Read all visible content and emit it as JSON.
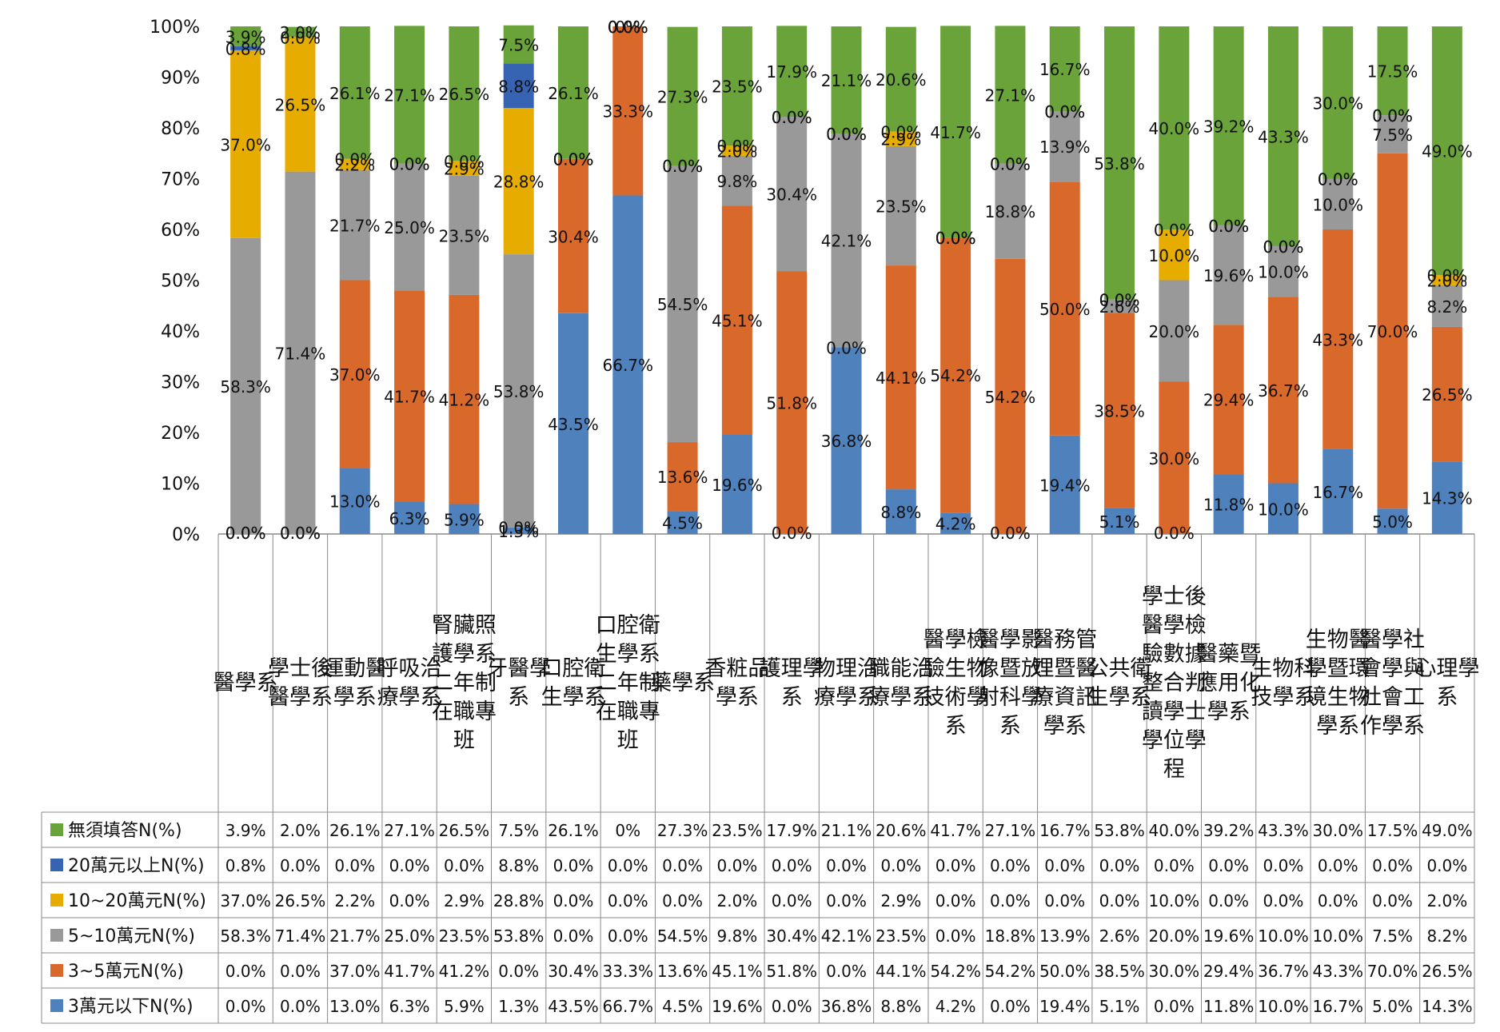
{
  "chart_data": {
    "type": "bar",
    "stacked": true,
    "percent_scale": true,
    "ylim": [
      0,
      100
    ],
    "y_ticks": [
      "0%",
      "10%",
      "20%",
      "30%",
      "40%",
      "50%",
      "60%",
      "70%",
      "80%",
      "90%",
      "100%"
    ],
    "grid": false,
    "legend": "data-table-left",
    "categories": [
      "醫學系",
      "學士後醫學系",
      "運動醫學系",
      "呼吸治療學系",
      "腎臟照護學系二年制在職專班",
      "牙醫學系",
      "口腔衛生學系",
      "口腔衛生學系二年制在職專班",
      "藥學系",
      "香粧品學系",
      "護理學系",
      "物理治療學系",
      "職能治療學系",
      "醫學檢驗生物技術學系",
      "醫學影像暨放射科學系",
      "醫務管理暨醫療資訊學系",
      "公共衛生學系",
      "學士後醫學檢驗數據整合判讀學士學位學程",
      "醫藥暨應用化學系",
      "生物科技學系",
      "生物醫學暨環境生物學系",
      "醫學社會學與社會工作學系",
      "心理學系"
    ],
    "series": [
      {
        "name": "3萬元以下N(%)",
        "color": "#4f81bd",
        "values": [
          0.0,
          0.0,
          13.0,
          6.3,
          5.9,
          1.3,
          43.5,
          66.7,
          4.5,
          19.6,
          0.0,
          36.8,
          8.8,
          4.2,
          0.0,
          19.4,
          5.1,
          0.0,
          11.8,
          10.0,
          16.7,
          5.0,
          14.3
        ],
        "labels": [
          "0.0%",
          "0.0%",
          "13.0%",
          "6.3%",
          "5.9%",
          "1.3%",
          "43.5%",
          "66.7%",
          "4.5%",
          "19.6%",
          "0.0%",
          "36.8%",
          "8.8%",
          "4.2%",
          "0.0%",
          "19.4%",
          "5.1%",
          "0.0%",
          "11.8%",
          "10.0%",
          "16.7%",
          "5.0%",
          "14.3%"
        ]
      },
      {
        "name": "3~5萬元N(%)",
        "color": "#d9692b",
        "values": [
          0.0,
          0.0,
          37.0,
          41.7,
          41.2,
          0.0,
          30.4,
          33.3,
          13.6,
          45.1,
          51.8,
          0.0,
          44.1,
          54.2,
          54.2,
          50.0,
          38.5,
          30.0,
          29.4,
          36.7,
          43.3,
          70.0,
          26.5
        ],
        "labels": [
          "0.0%",
          "0.0%",
          "37.0%",
          "41.7%",
          "41.2%",
          "0.0%",
          "30.4%",
          "33.3%",
          "13.6%",
          "45.1%",
          "51.8%",
          "0.0%",
          "44.1%",
          "54.2%",
          "54.2%",
          "50.0%",
          "38.5%",
          "30.0%",
          "29.4%",
          "36.7%",
          "43.3%",
          "70.0%",
          "26.5%"
        ]
      },
      {
        "name": "5~10萬元N(%)",
        "color": "#999999",
        "values": [
          58.3,
          71.4,
          21.7,
          25.0,
          23.5,
          53.8,
          0.0,
          0.0,
          54.5,
          9.8,
          30.4,
          42.1,
          23.5,
          0.0,
          18.8,
          13.9,
          2.6,
          20.0,
          19.6,
          10.0,
          10.0,
          7.5,
          8.2
        ],
        "labels": [
          "58.3%",
          "71.4%",
          "21.7%",
          "25.0%",
          "23.5%",
          "53.8%",
          "0.0%",
          "0.0%",
          "54.5%",
          "9.8%",
          "30.4%",
          "42.1%",
          "23.5%",
          "0.0%",
          "18.8%",
          "13.9%",
          "2.6%",
          "20.0%",
          "19.6%",
          "10.0%",
          "10.0%",
          "7.5%",
          "8.2%"
        ]
      },
      {
        "name": "10~20萬元N(%)",
        "color": "#e6ac00",
        "values": [
          37.0,
          26.5,
          2.2,
          0.0,
          2.9,
          28.8,
          0.0,
          0.0,
          0.0,
          2.0,
          0.0,
          0.0,
          2.9,
          0.0,
          0.0,
          0.0,
          0.0,
          10.0,
          0.0,
          0.0,
          0.0,
          0.0,
          2.0
        ],
        "labels": [
          "37.0%",
          "26.5%",
          "2.2%",
          "0.0%",
          "2.9%",
          "28.8%",
          "0.0%",
          "0.0%",
          "0.0%",
          "2.0%",
          "0.0%",
          "0.0%",
          "2.9%",
          "0.0%",
          "0.0%",
          "0.0%",
          "0.0%",
          "10.0%",
          "0.0%",
          "0.0%",
          "0.0%",
          "0.0%",
          "2.0%"
        ]
      },
      {
        "name": "20萬元以上N(%)",
        "color": "#3764b2",
        "values": [
          0.8,
          0.0,
          0.0,
          0.0,
          0.0,
          8.8,
          0.0,
          0.0,
          0.0,
          0.0,
          0.0,
          0.0,
          0.0,
          0.0,
          0.0,
          0.0,
          0.0,
          0.0,
          0.0,
          0.0,
          0.0,
          0.0,
          0.0
        ],
        "labels": [
          "0.8%",
          "0.0%",
          "0.0%",
          "0.0%",
          "0.0%",
          "8.8%",
          "0.0%",
          "0.0%",
          "0.0%",
          "0.0%",
          "0.0%",
          "0.0%",
          "0.0%",
          "0.0%",
          "0.0%",
          "0.0%",
          "0.0%",
          "0.0%",
          "0.0%",
          "0.0%",
          "0.0%",
          "0.0%",
          "0.0%"
        ]
      },
      {
        "name": "無須填答N(%)",
        "color": "#6aa33a",
        "values": [
          3.9,
          2.0,
          26.1,
          27.1,
          26.5,
          7.5,
          26.1,
          0.0,
          27.3,
          23.5,
          17.9,
          21.1,
          20.6,
          41.7,
          27.1,
          16.7,
          53.8,
          40.0,
          39.2,
          43.3,
          30.0,
          17.5,
          49.0
        ],
        "labels": [
          "3.9%",
          "2.0%",
          "26.1%",
          "27.1%",
          "26.5%",
          "7.5%",
          "26.1%",
          "0%",
          "27.3%",
          "23.5%",
          "17.9%",
          "21.1%",
          "20.6%",
          "41.7%",
          "27.1%",
          "16.7%",
          "53.8%",
          "40.0%",
          "39.2%",
          "43.3%",
          "30.0%",
          "17.5%",
          "49.0%"
        ]
      }
    ],
    "table_rows_order": [
      "無須填答N(%)",
      "20萬元以上N(%)",
      "10~20萬元N(%)",
      "5~10萬元N(%)",
      "3~5萬元N(%)",
      "3萬元以下N(%)"
    ],
    "xlabel": "",
    "ylabel": "",
    "title": ""
  }
}
